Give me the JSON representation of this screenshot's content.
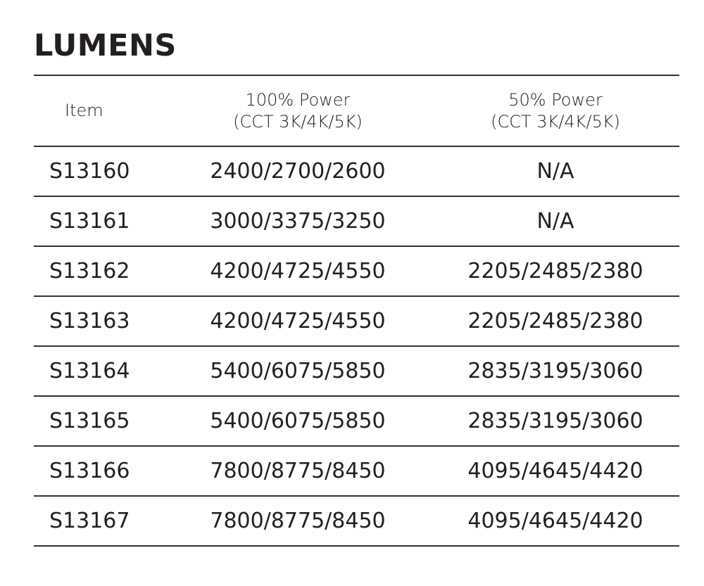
{
  "title": "LUMENS",
  "headers": {
    "item": "Item",
    "col100_line1": "100% Power",
    "col100_line2": "(CCT 3K/4K/5K)",
    "col50_line1": "50% Power",
    "col50_line2": "(CCT 3K/4K/5K)"
  },
  "rows": [
    {
      "item": "S13160",
      "p100": "2400/2700/2600",
      "p50": "N/A"
    },
    {
      "item": "S13161",
      "p100": "3000/3375/3250",
      "p50": "N/A"
    },
    {
      "item": "S13162",
      "p100": "4200/4725/4550",
      "p50": "2205/2485/2380"
    },
    {
      "item": "S13163",
      "p100": "4200/4725/4550",
      "p50": "2205/2485/2380"
    },
    {
      "item": "S13164",
      "p100": "5400/6075/5850",
      "p50": "2835/3195/3060"
    },
    {
      "item": "S13165",
      "p100": "5400/6075/5850",
      "p50": "2835/3195/3060"
    },
    {
      "item": "S13166",
      "p100": "7800/8775/8450",
      "p50": "4095/4645/4420"
    },
    {
      "item": "S13167",
      "p100": "7800/8775/8450",
      "p50": "4095/4645/4420"
    }
  ]
}
